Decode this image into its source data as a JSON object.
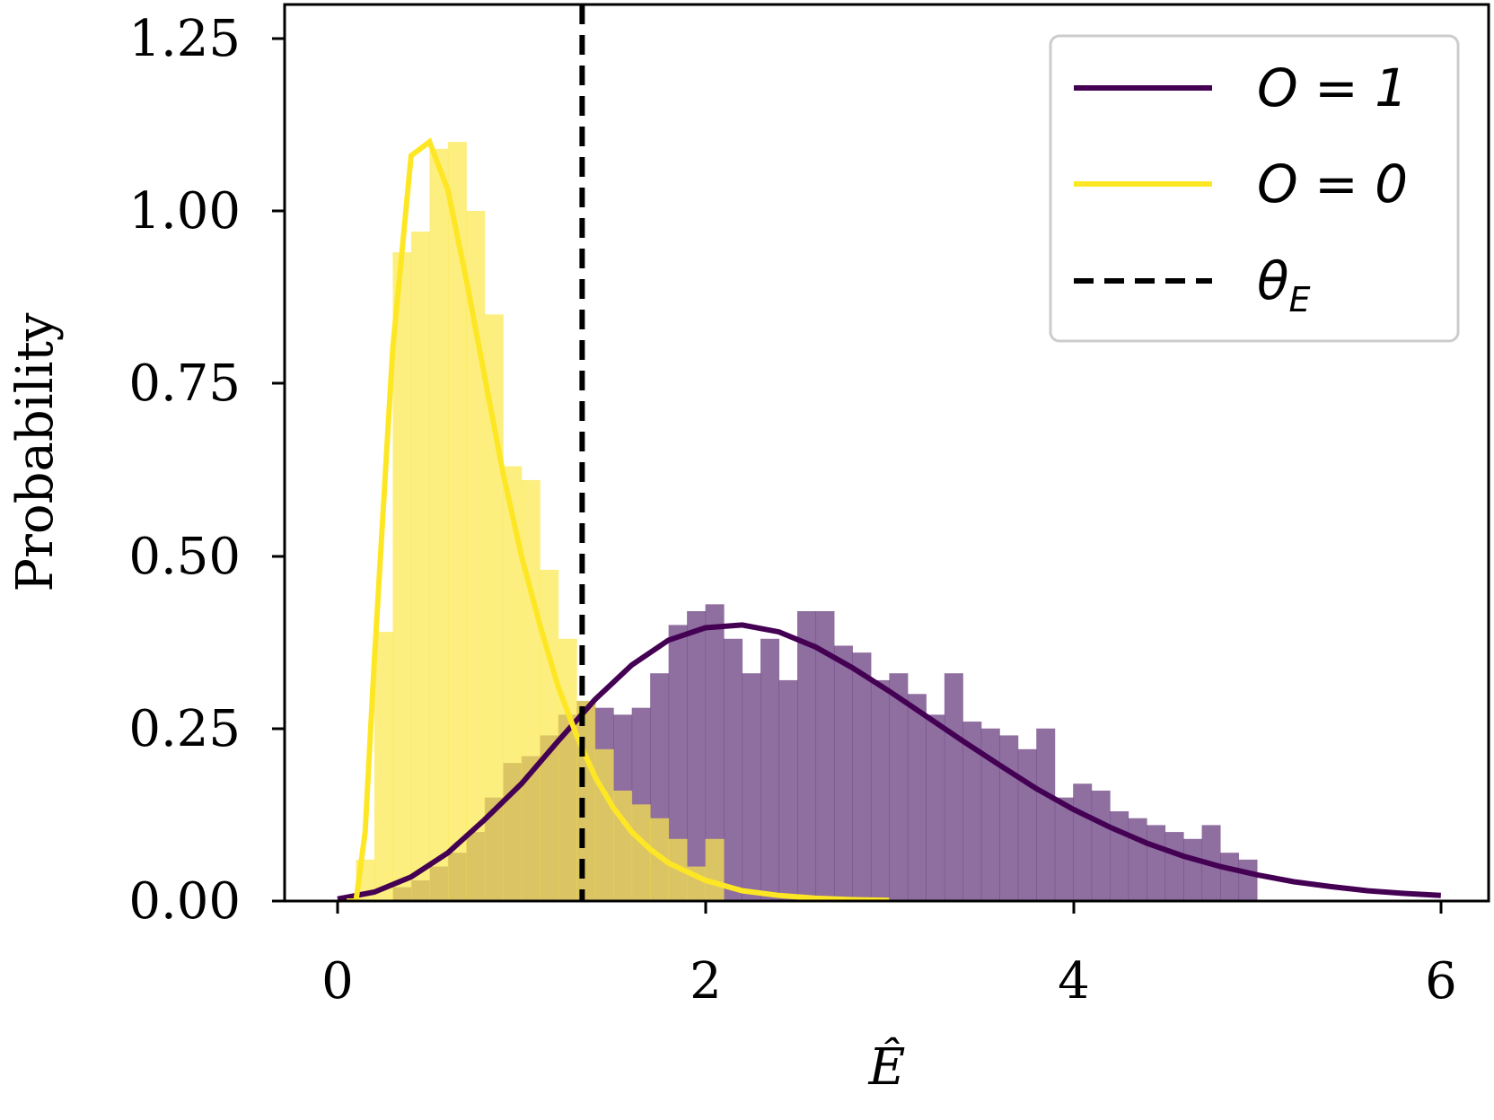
{
  "chart_data": {
    "type": "histogram+line",
    "xlabel": "Ê",
    "ylabel": "Probability",
    "xlim": [
      -0.3,
      6.3
    ],
    "ylim": [
      0,
      1.3
    ],
    "x_ticks": [
      "0",
      "2",
      "4",
      "6"
    ],
    "y_ticks": [
      "0.00",
      "0.25",
      "0.50",
      "0.75",
      "1.00",
      "1.25"
    ],
    "threshold": {
      "label": "θ_E",
      "label_main": "θ",
      "label_sub": "E",
      "x": 1.33,
      "style": "dashed",
      "color": "#000000"
    },
    "legend": {
      "placement": "top-right",
      "entries": [
        "O = 1",
        "O = 0",
        "θE"
      ]
    },
    "series": [
      {
        "name": "O = 1",
        "color": "#440154",
        "hist_color": "#6a3d80",
        "hist_alpha": 0.75,
        "bin_width": 0.1,
        "hist_bin_starts": [
          0.3,
          0.4,
          0.5,
          0.6,
          0.7,
          0.8,
          0.9,
          1.0,
          1.1,
          1.2,
          1.3,
          1.4,
          1.5,
          1.6,
          1.7,
          1.8,
          1.9,
          2.0,
          2.1,
          2.2,
          2.3,
          2.4,
          2.5,
          2.6,
          2.7,
          2.8,
          2.9,
          3.0,
          3.1,
          3.2,
          3.3,
          3.4,
          3.5,
          3.6,
          3.7,
          3.8,
          3.9,
          4.0,
          4.1,
          4.2,
          4.3,
          4.4,
          4.5,
          4.6,
          4.7,
          4.8,
          4.9
        ],
        "hist_values": [
          0.02,
          0.03,
          0.05,
          0.07,
          0.1,
          0.15,
          0.2,
          0.21,
          0.24,
          0.27,
          0.29,
          0.28,
          0.27,
          0.28,
          0.33,
          0.4,
          0.42,
          0.43,
          0.38,
          0.33,
          0.38,
          0.32,
          0.42,
          0.42,
          0.37,
          0.36,
          0.32,
          0.33,
          0.3,
          0.27,
          0.33,
          0.26,
          0.25,
          0.24,
          0.22,
          0.25,
          0.15,
          0.17,
          0.16,
          0.13,
          0.12,
          0.11,
          0.1,
          0.09,
          0.11,
          0.07,
          0.06
        ],
        "curve_x": [
          0,
          0.2,
          0.4,
          0.6,
          0.8,
          1.0,
          1.2,
          1.4,
          1.6,
          1.8,
          2.0,
          2.2,
          2.4,
          2.6,
          2.8,
          3.0,
          3.2,
          3.4,
          3.6,
          3.8,
          4.0,
          4.2,
          4.4,
          4.6,
          4.8,
          5.0,
          5.2,
          5.4,
          5.6,
          5.8,
          6.0
        ],
        "curve_y": [
          0.003,
          0.013,
          0.035,
          0.07,
          0.118,
          0.17,
          0.232,
          0.292,
          0.342,
          0.378,
          0.396,
          0.4,
          0.39,
          0.368,
          0.338,
          0.304,
          0.268,
          0.232,
          0.197,
          0.163,
          0.133,
          0.107,
          0.084,
          0.065,
          0.05,
          0.038,
          0.028,
          0.021,
          0.015,
          0.011,
          0.008
        ]
      },
      {
        "name": "O = 0",
        "color": "#fde725",
        "hist_color": "#fbe84a",
        "hist_alpha": 0.7,
        "bin_width": 0.1,
        "hist_bin_starts": [
          0.1,
          0.2,
          0.3,
          0.4,
          0.5,
          0.6,
          0.7,
          0.8,
          0.9,
          1.0,
          1.1,
          1.2,
          1.3,
          1.4,
          1.5,
          1.6,
          1.7,
          1.8,
          1.9,
          2.0
        ],
        "hist_values": [
          0.06,
          0.39,
          0.94,
          0.97,
          1.09,
          1.1,
          1.0,
          0.85,
          0.63,
          0.61,
          0.48,
          0.38,
          0.29,
          0.22,
          0.16,
          0.14,
          0.12,
          0.09,
          0.05,
          0.09
        ],
        "curve_x": [
          0.05,
          0.1,
          0.15,
          0.2,
          0.3,
          0.4,
          0.5,
          0.6,
          0.7,
          0.8,
          0.9,
          1.0,
          1.1,
          1.2,
          1.3,
          1.4,
          1.5,
          1.6,
          1.7,
          1.8,
          2.0,
          2.2,
          2.4,
          2.6,
          2.8,
          3.0
        ],
        "curve_y": [
          0.0,
          0.0,
          0.1,
          0.35,
          0.8,
          1.08,
          1.1,
          1.03,
          0.9,
          0.76,
          0.62,
          0.5,
          0.4,
          0.31,
          0.24,
          0.18,
          0.135,
          0.1,
          0.075,
          0.055,
          0.03,
          0.015,
          0.008,
          0.004,
          0.002,
          0.001
        ]
      }
    ]
  }
}
